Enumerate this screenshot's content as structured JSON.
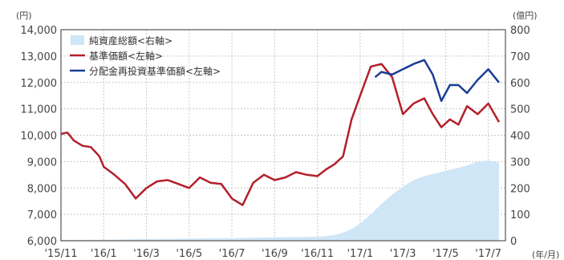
{
  "chart_data": {
    "type": "line",
    "y_left": {
      "unit": "(円)",
      "min": 6000,
      "max": 14000,
      "step": 1000,
      "ticks": [
        "14,000",
        "13,000",
        "12,000",
        "11,000",
        "10,000",
        "9,000",
        "8,000",
        "7,000",
        "6,000"
      ]
    },
    "y_right": {
      "unit": "(億円)",
      "min": 0,
      "max": 800,
      "step": 100,
      "ticks": [
        "800",
        "700",
        "600",
        "500",
        "400",
        "300",
        "200",
        "100",
        "0"
      ]
    },
    "x_axis": {
      "unit": "(年/月)",
      "ticks": [
        "'15/11",
        "'16/1",
        "'16/3",
        "'16/5",
        "'16/7",
        "'16/9",
        "'16/11",
        "'17/1",
        "'17/3",
        "'17/5",
        "'17/7"
      ]
    },
    "legend": [
      {
        "key": "nav",
        "label": "純資産総額<右軸>",
        "color": "#cfe6f7",
        "kind": "area"
      },
      {
        "key": "base",
        "label": "基準価額<左軸>",
        "color": "#b3202c",
        "kind": "line"
      },
      {
        "key": "reinv",
        "label": "分配金再投資基準価額<左軸>",
        "color": "#1a3e94",
        "kind": "line"
      }
    ],
    "series": [
      {
        "key": "base",
        "axis": "left",
        "x": [
          0,
          0.3,
          0.6,
          1,
          1.4,
          1.8,
          2,
          2.5,
          3,
          3.5,
          4,
          4.5,
          5,
          5.5,
          6,
          6.5,
          7,
          7.5,
          8,
          8.5,
          9,
          9.5,
          10,
          10.5,
          11,
          11.5,
          12,
          12.4,
          12.8,
          13.2,
          13.6,
          14,
          14.5,
          15,
          15.5,
          16,
          16.5,
          17,
          17.4,
          17.8,
          18.2,
          18.6,
          19,
          19.5,
          20,
          20.5
        ],
        "values": [
          10050,
          10100,
          9800,
          9600,
          9550,
          9200,
          8800,
          8500,
          8150,
          7600,
          8000,
          8250,
          8300,
          8150,
          8000,
          8400,
          8200,
          8150,
          7600,
          7350,
          8200,
          8500,
          8300,
          8400,
          8600,
          8500,
          8450,
          8700,
          8900,
          9200,
          10600,
          11500,
          12600,
          12700,
          12200,
          10800,
          11200,
          11400,
          10800,
          10300,
          10600,
          10400,
          11100,
          10800,
          11200,
          10500
        ]
      },
      {
        "key": "reinv",
        "axis": "left",
        "x": [
          14.7,
          15,
          15.5,
          16,
          16.5,
          17,
          17.4,
          17.8,
          18.2,
          18.6,
          19,
          19.5,
          20,
          20.5
        ],
        "values": [
          12200,
          12400,
          12300,
          12500,
          12700,
          12850,
          12300,
          11300,
          11900,
          11900,
          11600,
          12100,
          12500,
          12000
        ]
      },
      {
        "key": "nav",
        "axis": "right",
        "x": [
          0,
          2,
          4,
          6,
          8,
          10,
          12,
          12.5,
          13,
          13.5,
          14,
          14.5,
          15,
          15.5,
          16,
          16.5,
          17,
          17.5,
          18,
          18.5,
          19,
          19.5,
          20,
          20.5
        ],
        "values": [
          3,
          4,
          6,
          8,
          10,
          13,
          15,
          18,
          25,
          40,
          65,
          100,
          140,
          175,
          205,
          230,
          245,
          255,
          265,
          275,
          285,
          300,
          305,
          295
        ]
      }
    ],
    "grid": true,
    "legend_position": "top-left"
  }
}
